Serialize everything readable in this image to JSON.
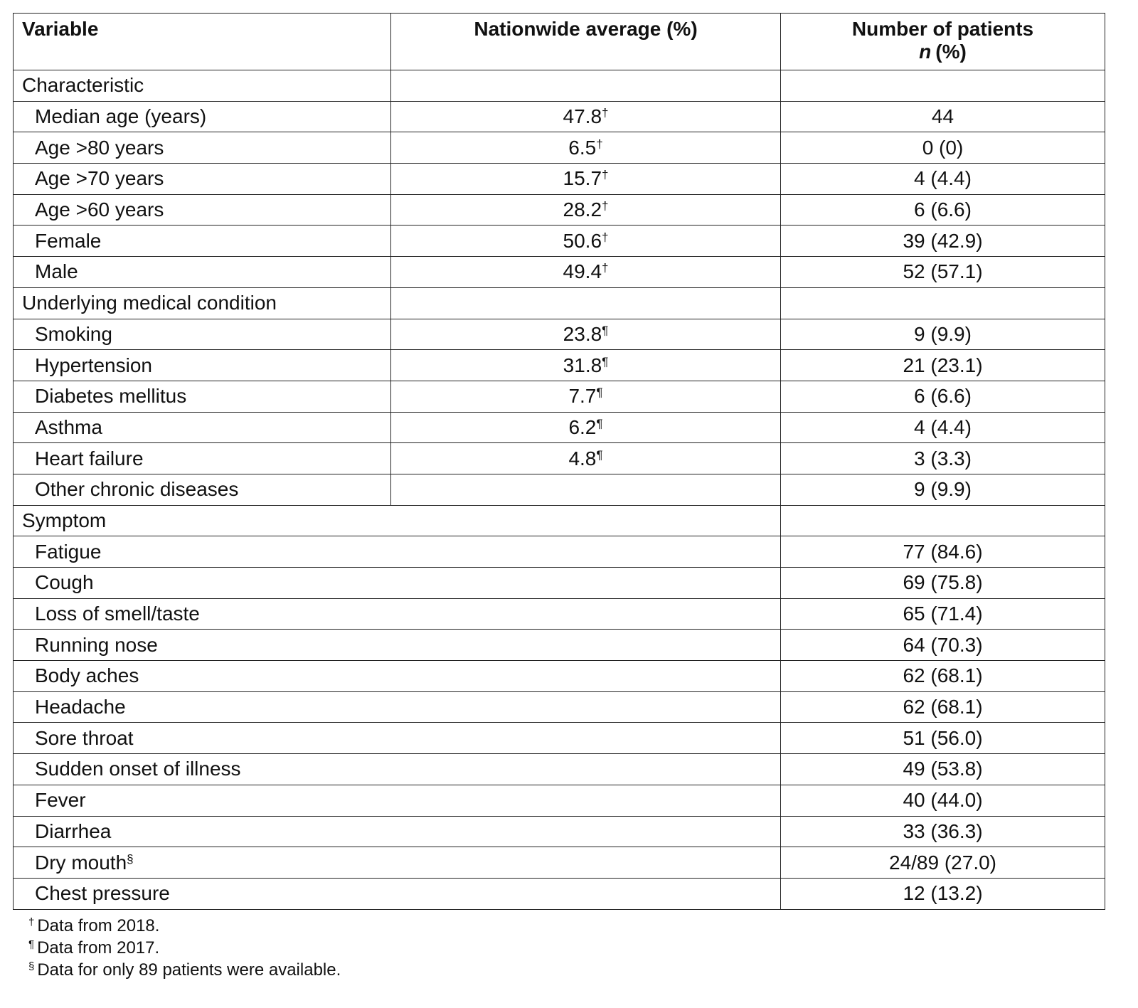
{
  "table": {
    "header": {
      "variable": "Variable",
      "nationwide": "Nationwide average (%)",
      "patients": "Number of patients",
      "patients_n": "n",
      "patients_unit": "(%)"
    },
    "sections": [
      {
        "label": "Characteristic",
        "has_nationwide": true,
        "rows": [
          {
            "label": "Median age (years)",
            "nationwide": "47.8",
            "nationwide_note": "†",
            "patients": "44"
          },
          {
            "label": "Age >80 years",
            "nationwide": "6.5",
            "nationwide_note": "†",
            "patients": "0 (0)"
          },
          {
            "label": "Age >70 years",
            "nationwide": "15.7",
            "nationwide_note": "†",
            "patients": "4 (4.4)"
          },
          {
            "label": "Age >60 years",
            "nationwide": "28.2",
            "nationwide_note": "†",
            "patients": "6 (6.6)"
          },
          {
            "label": "Female",
            "nationwide": "50.6",
            "nationwide_note": "†",
            "patients": "39 (42.9)"
          },
          {
            "label": "Male",
            "nationwide": "49.4",
            "nationwide_note": "†",
            "patients": "52 (57.1)"
          }
        ]
      },
      {
        "label": "Underlying medical condition",
        "has_nationwide": true,
        "rows": [
          {
            "label": "Smoking",
            "nationwide": "23.8",
            "nationwide_note": "¶",
            "patients": "9 (9.9)"
          },
          {
            "label": "Hypertension",
            "nationwide": "31.8",
            "nationwide_note": "¶",
            "patients": "21 (23.1)"
          },
          {
            "label": "Diabetes mellitus",
            "nationwide": "7.7",
            "nationwide_note": "¶",
            "patients": "6 (6.6)"
          },
          {
            "label": "Asthma",
            "nationwide": "6.2",
            "nationwide_note": "¶",
            "patients": "4 (4.4)"
          },
          {
            "label": "Heart failure",
            "nationwide": "4.8",
            "nationwide_note": "¶",
            "patients": "3 (3.3)"
          },
          {
            "label": "Other chronic diseases",
            "patients": "9 (9.9)"
          }
        ]
      },
      {
        "label": "Symptom",
        "has_nationwide": false,
        "rows": [
          {
            "label": "Fatigue",
            "patients": "77 (84.6)"
          },
          {
            "label": "Cough",
            "patients": "69 (75.8)"
          },
          {
            "label": "Loss of smell/taste",
            "patients": "65 (71.4)"
          },
          {
            "label": "Running nose",
            "patients": "64 (70.3)"
          },
          {
            "label": "Body aches",
            "patients": "62 (68.1)"
          },
          {
            "label": "Headache",
            "patients": "62 (68.1)"
          },
          {
            "label": "Sore throat",
            "patients": "51 (56.0)"
          },
          {
            "label": "Sudden onset of illness",
            "patients": "49 (53.8)"
          },
          {
            "label": "Fever",
            "patients": "40 (44.0)"
          },
          {
            "label": "Diarrhea",
            "patients": "33 (36.3)"
          },
          {
            "label": "Dry mouth",
            "label_note": "§",
            "patients": "24/89 (27.0)"
          },
          {
            "label": "Chest pressure",
            "patients": "12 (13.2)"
          }
        ]
      }
    ]
  },
  "footnotes": [
    {
      "mark": "†",
      "text": "Data from 2018."
    },
    {
      "mark": "¶",
      "text": "Data from 2017."
    },
    {
      "mark": "§",
      "text": "Data for only 89 patients were available."
    }
  ]
}
